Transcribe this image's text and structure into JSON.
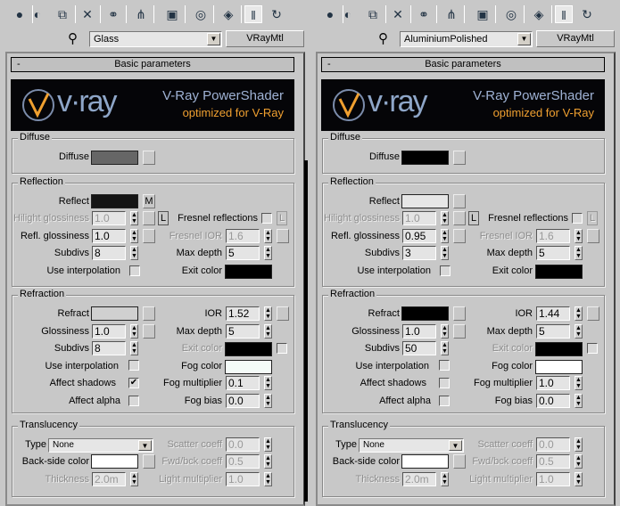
{
  "toolbar_icons": [
    "get-material-icon",
    "put-to-scene-icon",
    "assign-material-icon",
    "reset-map-icon",
    "make-unique-icon",
    "put-to-library-icon",
    "material-id-icon",
    "show-map-icon",
    "show-end-result-icon",
    "go-to-parent-icon",
    "go-forward-icon"
  ],
  "panels": [
    {
      "material_name": "Glass",
      "material_type": "VRayMtl",
      "rollout": {
        "collapse": "-",
        "title": "Basic parameters"
      },
      "banner": {
        "logo": "v·ray",
        "title": "V-Ray PowerShader",
        "subtitle": "optimized for V-Ray"
      },
      "diffuse": {
        "group": "Diffuse",
        "label": "Diffuse",
        "color": "#666666"
      },
      "reflection": {
        "group": "Reflection",
        "reflect_label": "Reflect",
        "reflect_color": "#151515",
        "reflect_map": "M",
        "hilight_label": "Hilight glossiness",
        "hilight": "1.0",
        "lock": "L",
        "fresnel_label": "Fresnel reflections",
        "fresnel_checked": false,
        "fresnel_lock": "L",
        "refl_gloss_label": "Refl. glossiness",
        "refl_gloss": "1.0",
        "fresnel_ior_label": "Fresnel IOR",
        "fresnel_ior": "1.6",
        "subdivs_label": "Subdivs",
        "subdivs": "8",
        "max_depth_label": "Max depth",
        "max_depth": "5",
        "interp_label": "Use interpolation",
        "interp_checked": false,
        "exit_label": "Exit color",
        "exit_color": "#000000"
      },
      "refraction": {
        "group": "Refraction",
        "refract_label": "Refract",
        "refract_color": "#d0d0d0",
        "ior_label": "IOR",
        "ior": "1.52",
        "gloss_label": "Glossiness",
        "gloss": "1.0",
        "max_depth_label": "Max depth",
        "max_depth": "5",
        "subdivs_label": "Subdivs",
        "subdivs": "8",
        "exit_label": "Exit color",
        "exit_color": "#000000",
        "interp_label": "Use interpolation",
        "interp_checked": false,
        "fog_color_label": "Fog color",
        "fog_color": "#f4fbf8",
        "shadows_label": "Affect shadows",
        "shadows_checked": true,
        "fog_mult_label": "Fog multiplier",
        "fog_mult": "0.1",
        "alpha_label": "Affect alpha",
        "alpha_checked": false,
        "fog_bias_label": "Fog bias",
        "fog_bias": "0.0"
      },
      "translucency": {
        "group": "Translucency",
        "type_label": "Type",
        "type": "None",
        "scatter_label": "Scatter coeff",
        "scatter": "0.0",
        "backside_label": "Back-side color",
        "backside_color": "#ffffff",
        "fwd_label": "Fwd/bck coeff",
        "fwd": "0.5",
        "thickness_label": "Thickness",
        "thickness": "2.0m",
        "light_mult_label": "Light multiplier",
        "light_mult": "1.0"
      }
    },
    {
      "material_name": "AluminiumPolished",
      "material_type": "VRayMtl",
      "rollout": {
        "collapse": "-",
        "title": "Basic parameters"
      },
      "banner": {
        "logo": "v·ray",
        "title": "V-Ray PowerShader",
        "subtitle": "optimized for V-Ray"
      },
      "diffuse": {
        "group": "Diffuse",
        "label": "Diffuse",
        "color": "#000000"
      },
      "reflection": {
        "group": "Reflection",
        "reflect_label": "Reflect",
        "reflect_color": "#e6e6e6",
        "reflect_map": "",
        "hilight_label": "Hilight glossiness",
        "hilight": "1.0",
        "lock": "L",
        "fresnel_label": "Fresnel reflections",
        "fresnel_checked": false,
        "fresnel_lock": "L",
        "refl_gloss_label": "Refl. glossiness",
        "refl_gloss": "0.95",
        "fresnel_ior_label": "Fresnel IOR",
        "fresnel_ior": "1.6",
        "subdivs_label": "Subdivs",
        "subdivs": "3",
        "max_depth_label": "Max depth",
        "max_depth": "5",
        "interp_label": "Use interpolation",
        "interp_checked": false,
        "exit_label": "Exit color",
        "exit_color": "#000000"
      },
      "refraction": {
        "group": "Refraction",
        "refract_label": "Refract",
        "refract_color": "#000000",
        "ior_label": "IOR",
        "ior": "1.44",
        "gloss_label": "Glossiness",
        "gloss": "1.0",
        "max_depth_label": "Max depth",
        "max_depth": "5",
        "subdivs_label": "Subdivs",
        "subdivs": "50",
        "exit_label": "Exit color",
        "exit_color": "#000000",
        "interp_label": "Use interpolation",
        "interp_checked": false,
        "fog_color_label": "Fog color",
        "fog_color": "#ffffff",
        "shadows_label": "Affect shadows",
        "shadows_checked": false,
        "fog_mult_label": "Fog multiplier",
        "fog_mult": "1.0",
        "alpha_label": "Affect alpha",
        "alpha_checked": false,
        "fog_bias_label": "Fog bias",
        "fog_bias": "0.0"
      },
      "translucency": {
        "group": "Translucency",
        "type_label": "Type",
        "type": "None",
        "scatter_label": "Scatter coeff",
        "scatter": "0.0",
        "backside_label": "Back-side color",
        "backside_color": "#ffffff",
        "fwd_label": "Fwd/bck coeff",
        "fwd": "0.5",
        "thickness_label": "Thickness",
        "thickness": "2.0m",
        "light_mult_label": "Light multiplier",
        "light_mult": "1.0"
      }
    }
  ]
}
